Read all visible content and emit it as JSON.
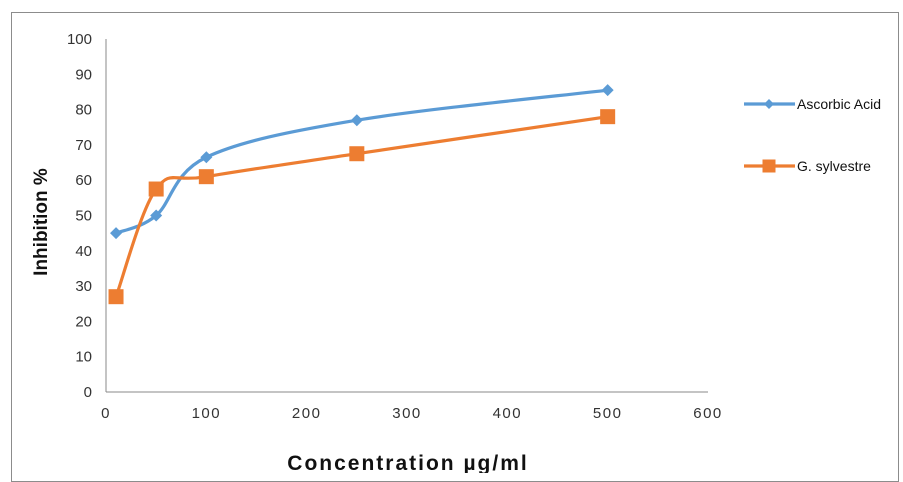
{
  "chart_data": {
    "type": "line",
    "title": "",
    "xlabel": "Concentration µg/ml",
    "ylabel": "Inhibition %",
    "xlim": [
      0,
      600
    ],
    "ylim": [
      0,
      100
    ],
    "xticks": [
      0,
      100,
      200,
      300,
      400,
      500,
      600
    ],
    "yticks": [
      0,
      10,
      20,
      30,
      40,
      50,
      60,
      70,
      80,
      90,
      100
    ],
    "grid": false,
    "legend_position": "right",
    "smoothed": true,
    "series": [
      {
        "name": "Ascorbic Acid",
        "color": "#5B9BD5",
        "marker": "diamond",
        "points": [
          {
            "x": 10,
            "y": 45
          },
          {
            "x": 50,
            "y": 50
          },
          {
            "x": 100,
            "y": 66.5
          },
          {
            "x": 250,
            "y": 77
          },
          {
            "x": 500,
            "y": 85.5
          }
        ]
      },
      {
        "name": "G. sylvestre",
        "color": "#ED7D31",
        "marker": "square",
        "points": [
          {
            "x": 10,
            "y": 27
          },
          {
            "x": 50,
            "y": 57.5
          },
          {
            "x": 100,
            "y": 61
          },
          {
            "x": 250,
            "y": 67.5
          },
          {
            "x": 500,
            "y": 78
          }
        ]
      }
    ]
  }
}
